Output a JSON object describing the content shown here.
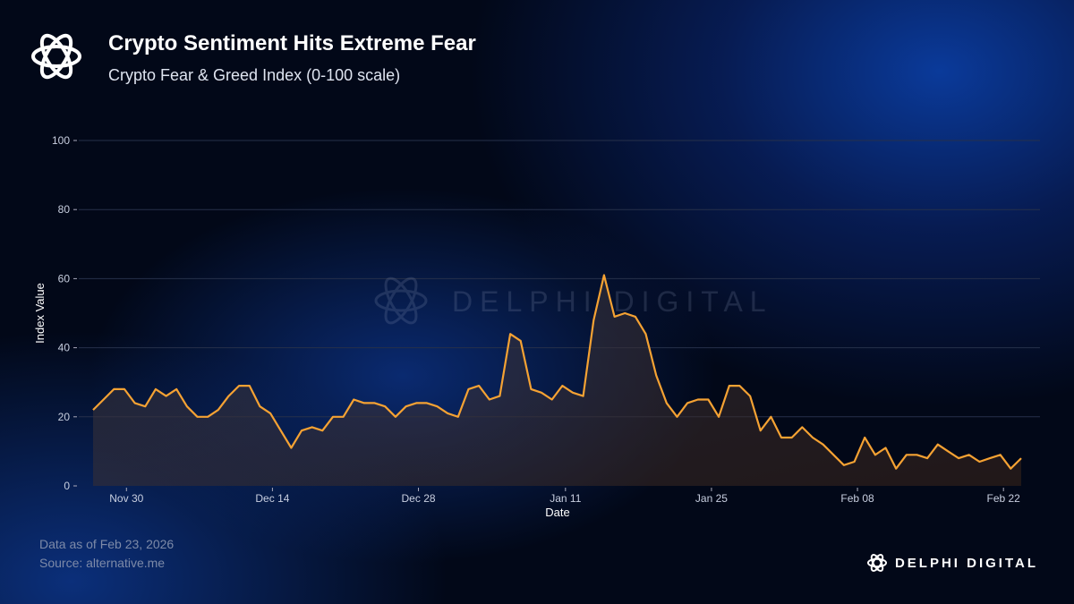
{
  "header": {
    "title": "Crypto Sentiment Hits Extreme Fear",
    "subtitle": "Crypto Fear & Greed Index (0-100 scale)"
  },
  "footer": {
    "data_as_of": "Data as of Feb 23, 2026",
    "source": "Source: alternative.me"
  },
  "brand": {
    "name": "DELPHI DIGITAL",
    "watermark": "DELPHI DIGITAL"
  },
  "colors": {
    "line": "#f5a233",
    "grid": "#26304a"
  },
  "chart_data": {
    "type": "area",
    "title": "Crypto Fear & Greed Index (0-100 scale)",
    "xlabel": "Date",
    "ylabel": "Index Value",
    "ylim": [
      0,
      100
    ],
    "yticks": [
      0,
      20,
      40,
      60,
      80,
      100
    ],
    "xticks": [
      {
        "label": "Nov 30",
        "index": 3.2
      },
      {
        "label": "Dec 14",
        "index": 17.2
      },
      {
        "label": "Dec 28",
        "index": 31.2
      },
      {
        "label": "Jan 11",
        "index": 45.3
      },
      {
        "label": "Jan 25",
        "index": 59.3
      },
      {
        "label": "Feb 08",
        "index": 73.3
      },
      {
        "label": "Feb 22",
        "index": 87.3
      }
    ],
    "grid": true,
    "values": [
      22,
      25,
      28,
      28,
      24,
      23,
      28,
      26,
      28,
      23,
      20,
      20,
      22,
      26,
      29,
      29,
      23,
      21,
      16,
      11,
      16,
      17,
      16,
      20,
      20,
      25,
      24,
      24,
      23,
      20,
      23,
      24,
      24,
      23,
      21,
      20,
      28,
      29,
      25,
      26,
      44,
      42,
      28,
      27,
      25,
      29,
      27,
      26,
      48,
      61,
      49,
      50,
      49,
      44,
      32,
      24,
      20,
      24,
      25,
      25,
      20,
      29,
      29,
      26,
      16,
      20,
      14,
      14,
      17,
      14,
      12,
      9,
      6,
      7,
      14,
      9,
      11,
      5,
      9,
      9,
      8,
      12,
      10,
      8,
      9,
      7,
      8,
      9,
      5,
      8
    ]
  }
}
